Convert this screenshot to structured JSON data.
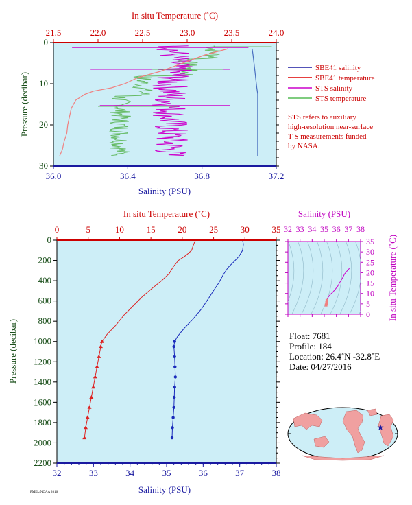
{
  "chart_data": [
    {
      "type": "line",
      "panel": "top",
      "top_axis_label": "In situ Temperature (˚C)",
      "bottom_axis_label": "Salinity (PSU)",
      "left_axis_label": "Pressure (decibar)",
      "top_axis_range": [
        21.5,
        24.0
      ],
      "bottom_axis_range": [
        36.0,
        37.2
      ],
      "left_axis_range": [
        0,
        30
      ],
      "top_ticks": [
        "21.5",
        "22.0",
        "22.5",
        "23.0",
        "23.5",
        "24.0"
      ],
      "bottom_ticks": [
        "36.0",
        "36.4",
        "36.8",
        "37.2"
      ],
      "left_ticks": [
        "0",
        "10",
        "20",
        "30"
      ],
      "legend": [
        "SBE41 salinity",
        "SBE41 temperature",
        "STS salinity",
        "STS temperature"
      ],
      "legend_colors": [
        "#1a1aa0",
        "#dd0000",
        "#cc00cc",
        "#55bb55"
      ],
      "note": [
        "STS refers to auxiliary",
        "high-resolution near-surface",
        "T-S measurements funded",
        "by NASA."
      ],
      "series": [
        {
          "name": "SBE41 salinity",
          "color": "#4a6fc0",
          "axis": "salinity",
          "points": [
            [
              37.07,
              1.5
            ],
            [
              37.075,
              3
            ],
            [
              37.08,
              5
            ],
            [
              37.085,
              7
            ],
            [
              37.09,
              9
            ],
            [
              37.095,
              11
            ],
            [
              37.1,
              12.5
            ],
            [
              37.1,
              14
            ],
            [
              37.1,
              17
            ],
            [
              37.1,
              20
            ],
            [
              37.1,
              23
            ],
            [
              37.1,
              26
            ],
            [
              37.1,
              27.5
            ]
          ]
        },
        {
          "name": "SBE41 temperature",
          "color": "#f08080",
          "axis": "temperature",
          "points": [
            [
              23.46,
              1.5
            ],
            [
              23.2,
              3
            ],
            [
              22.95,
              5
            ],
            [
              22.7,
              7
            ],
            [
              22.45,
              8.5
            ],
            [
              22.3,
              10
            ],
            [
              22.15,
              11
            ],
            [
              21.95,
              11.8
            ],
            [
              21.85,
              12.6
            ],
            [
              21.75,
              14
            ],
            [
              21.7,
              16
            ],
            [
              21.68,
              18
            ],
            [
              21.66,
              20
            ],
            [
              21.65,
              22
            ],
            [
              21.62,
              24
            ],
            [
              21.6,
              26
            ],
            [
              21.57,
              27.5
            ]
          ]
        },
        {
          "name": "STS salinity",
          "color": "#cc00cc",
          "axis": "salinity",
          "range": [
            36.3,
            37.1
          ],
          "noise": 0.1
        },
        {
          "name": "STS temperature",
          "color": "#66bb66",
          "axis": "temperature",
          "range": [
            22.1,
            23.6
          ],
          "noise": 0.12
        }
      ]
    },
    {
      "type": "line",
      "panel": "profile",
      "top_axis_label": "In situ Temperature (˚C)",
      "bottom_axis_label": "Salinity (PSU)",
      "left_axis_label": "Pressure (decibar)",
      "top_axis_range": [
        0,
        35
      ],
      "bottom_axis_range": [
        32,
        38
      ],
      "left_axis_range": [
        0,
        2200
      ],
      "top_ticks": [
        "0",
        "5",
        "10",
        "15",
        "20",
        "25",
        "30",
        "35"
      ],
      "bottom_ticks": [
        "32",
        "33",
        "34",
        "35",
        "36",
        "37",
        "38"
      ],
      "left_ticks": [
        "0",
        "200",
        "400",
        "600",
        "800",
        "1000",
        "1200",
        "1400",
        "1600",
        "1800",
        "2000",
        "2200"
      ],
      "series": [
        {
          "name": "temperature",
          "color": "#dd2222",
          "axis": "temperature",
          "points": [
            [
              22.1,
              0
            ],
            [
              21.9,
              30
            ],
            [
              21.7,
              60
            ],
            [
              21.5,
              100
            ],
            [
              20.6,
              150
            ],
            [
              19.4,
              200
            ],
            [
              18.6,
              260
            ],
            [
              17.9,
              330
            ],
            [
              16.7,
              400
            ],
            [
              15.3,
              470
            ],
            [
              13.6,
              560
            ],
            [
              12.3,
              640
            ],
            [
              10.7,
              740
            ],
            [
              9.4,
              840
            ],
            [
              8.0,
              930
            ],
            [
              7.2,
              1000
            ],
            [
              7.0,
              1050
            ],
            [
              6.7,
              1150
            ],
            [
              6.4,
              1250
            ],
            [
              6.1,
              1350
            ],
            [
              5.8,
              1450
            ],
            [
              5.5,
              1550
            ],
            [
              5.2,
              1650
            ],
            [
              4.9,
              1750
            ],
            [
              4.6,
              1850
            ],
            [
              4.4,
              1950
            ]
          ]
        },
        {
          "name": "salinity",
          "color": "#1a2bbb",
          "axis": "salinity",
          "points": [
            [
              37.08,
              0
            ],
            [
              37.1,
              40
            ],
            [
              37.08,
              100
            ],
            [
              36.98,
              160
            ],
            [
              36.85,
              210
            ],
            [
              36.68,
              270
            ],
            [
              36.55,
              340
            ],
            [
              36.43,
              420
            ],
            [
              36.28,
              500
            ],
            [
              36.12,
              590
            ],
            [
              35.95,
              680
            ],
            [
              35.72,
              780
            ],
            [
              35.48,
              870
            ],
            [
              35.3,
              950
            ],
            [
              35.22,
              1000
            ],
            [
              35.2,
              1050
            ],
            [
              35.22,
              1150
            ],
            [
              35.23,
              1250
            ],
            [
              35.24,
              1350
            ],
            [
              35.22,
              1450
            ],
            [
              35.21,
              1550
            ],
            [
              35.2,
              1650
            ],
            [
              35.18,
              1750
            ],
            [
              35.16,
              1850
            ],
            [
              35.15,
              1950
            ]
          ]
        }
      ]
    },
    {
      "type": "scatter",
      "panel": "ts-diagram",
      "top_axis_label": "Salinity (PSU)",
      "right_axis_label": "In situ Temperature (˚C)",
      "x_range": [
        32,
        38
      ],
      "y_range": [
        0,
        35
      ],
      "x_ticks": [
        "32",
        "33",
        "34",
        "35",
        "36",
        "37",
        "38"
      ],
      "y_ticks": [
        "0",
        "5",
        "10",
        "15",
        "20",
        "25",
        "30",
        "35"
      ],
      "points": [
        [
          35.15,
          4.4
        ],
        [
          35.18,
          5.0
        ],
        [
          35.2,
          5.8
        ],
        [
          35.22,
          6.7
        ],
        [
          35.3,
          8.0
        ],
        [
          35.48,
          9.4
        ],
        [
          35.72,
          10.7
        ],
        [
          35.95,
          12.3
        ],
        [
          36.12,
          13.6
        ],
        [
          36.28,
          15.3
        ],
        [
          36.43,
          16.7
        ],
        [
          36.55,
          17.9
        ],
        [
          36.68,
          19.4
        ],
        [
          36.85,
          20.6
        ],
        [
          36.98,
          21.5
        ],
        [
          37.08,
          22.1
        ]
      ]
    }
  ],
  "info": {
    "float": "Float:  7681",
    "profile": "Profile:  184",
    "location": "Location:  26.4˚N  -32.8˚E",
    "date": "Date:  04/27/2016"
  },
  "footer_small": "PMEL/NOAA 2016",
  "colors": {
    "plot_bg": "#cdeef7",
    "blue": "#1a1aa0",
    "red": "#cc0000",
    "magenta": "#c000c0",
    "green": "#1a4f1a"
  }
}
